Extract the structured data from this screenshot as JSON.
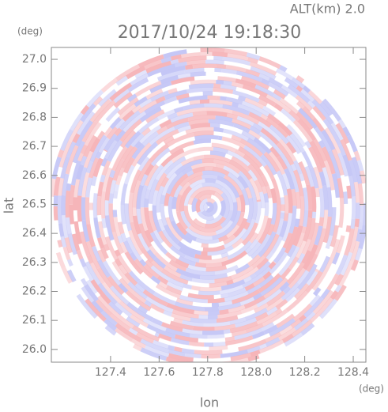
{
  "chart_data": {
    "type": "ppi",
    "title": "2017/10/24 19:18:30",
    "subtitle": "ALT(km) 2.0",
    "x_label": "lon",
    "y_label": "lat",
    "x_unit": "(deg)",
    "y_unit": "(deg)",
    "xlim": [
      127.156,
      128.452
    ],
    "ylim": [
      25.956,
      27.041
    ],
    "xticks": [
      127.4,
      127.6,
      127.8,
      {
        "value": 128,
        "label": "128.0"
      },
      128.2,
      128.4
    ],
    "yticks": [
      {
        "value": 26,
        "label": "26.0"
      },
      26.1,
      26.2,
      26.3,
      26.4,
      26.5,
      26.6,
      26.7,
      26.8,
      26.9,
      {
        "value": 27,
        "label": "27.0"
      }
    ]
  }
}
